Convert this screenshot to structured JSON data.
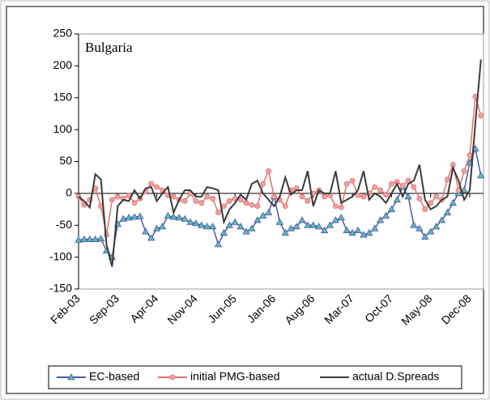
{
  "chart_data": {
    "type": "line",
    "title": "Bulgaria",
    "legend": "bottom",
    "grid": false,
    "categories": [
      "Feb-03",
      null,
      null,
      null,
      null,
      null,
      null,
      "Sep-03",
      null,
      null,
      null,
      null,
      null,
      null,
      "Apr-04",
      null,
      null,
      null,
      null,
      null,
      null,
      "Nov-04",
      null,
      null,
      null,
      null,
      null,
      null,
      "Jun-05",
      null,
      null,
      null,
      null,
      null,
      null,
      "Jan-06",
      null,
      null,
      null,
      null,
      null,
      null,
      "Aug-06",
      null,
      null,
      null,
      null,
      null,
      null,
      "Mar-07",
      null,
      null,
      null,
      null,
      null,
      null,
      "Oct-07",
      null,
      null,
      null,
      null,
      null,
      null,
      "May-08",
      null,
      null,
      null,
      null,
      null,
      null,
      "Dec-08",
      null,
      null
    ],
    "ylim": [
      -150,
      250
    ],
    "yticks": [
      -150,
      -100,
      -50,
      0,
      50,
      100,
      150,
      200,
      250
    ],
    "series": [
      {
        "name": "EC-based",
        "color": "#4a5aa8",
        "marker": "triangle",
        "marker_color": "#5fb8b5",
        "values": [
          -73,
          -72,
          -72,
          -72,
          -71,
          -90,
          -100,
          -48,
          -40,
          -38,
          -37,
          -36,
          -60,
          -70,
          -55,
          -52,
          -35,
          -37,
          -38,
          -40,
          -45,
          -47,
          -50,
          -52,
          -52,
          -80,
          -62,
          -50,
          -45,
          -52,
          -60,
          -55,
          -42,
          -35,
          -30,
          -5,
          -45,
          -62,
          -55,
          -52,
          -42,
          -50,
          -50,
          -52,
          -58,
          -50,
          -42,
          -38,
          -58,
          -62,
          -58,
          -65,
          -62,
          -55,
          -42,
          -35,
          -25,
          -10,
          10,
          -5,
          -50,
          -55,
          -68,
          -60,
          -52,
          -42,
          -30,
          -15,
          0,
          5,
          48,
          70,
          28
        ]
      },
      {
        "name": "initial PMG-based",
        "color": "#e07070",
        "marker": "circle",
        "marker_color": "#f0a0a0",
        "values": [
          -5,
          -18,
          -10,
          8,
          -20,
          -65,
          -10,
          -5,
          -8,
          -3,
          -15,
          -8,
          3,
          15,
          10,
          5,
          -3,
          -5,
          -10,
          -12,
          0,
          -12,
          -15,
          -5,
          -8,
          -30,
          -20,
          -12,
          -8,
          -10,
          -15,
          -18,
          -20,
          15,
          35,
          -5,
          -10,
          -20,
          5,
          8,
          -5,
          -12,
          0,
          5,
          -5,
          -3,
          -20,
          -22,
          15,
          20,
          -3,
          -5,
          0,
          10,
          5,
          -2,
          15,
          18,
          12,
          20,
          10,
          -8,
          -25,
          -15,
          -5,
          -10,
          22,
          45,
          5,
          35,
          60,
          152,
          122
        ]
      },
      {
        "name": "actual D.Spreads",
        "color": "#3a3a3a",
        "marker": "none",
        "values": [
          -5,
          -12,
          -22,
          30,
          22,
          -80,
          -115,
          -20,
          -10,
          -12,
          5,
          -8,
          8,
          10,
          -12,
          0,
          10,
          -30,
          -10,
          5,
          5,
          -5,
          -5,
          10,
          8,
          5,
          -45,
          -25,
          -15,
          -2,
          -10,
          15,
          20,
          0,
          -10,
          -20,
          -5,
          25,
          -2,
          5,
          5,
          35,
          -20,
          5,
          0,
          0,
          35,
          -15,
          -10,
          -5,
          5,
          35,
          -10,
          0,
          -5,
          -15,
          0,
          15,
          -5,
          15,
          20,
          45,
          -10,
          -25,
          -20,
          -10,
          -5,
          40,
          20,
          -10,
          5,
          110,
          210
        ]
      }
    ]
  }
}
